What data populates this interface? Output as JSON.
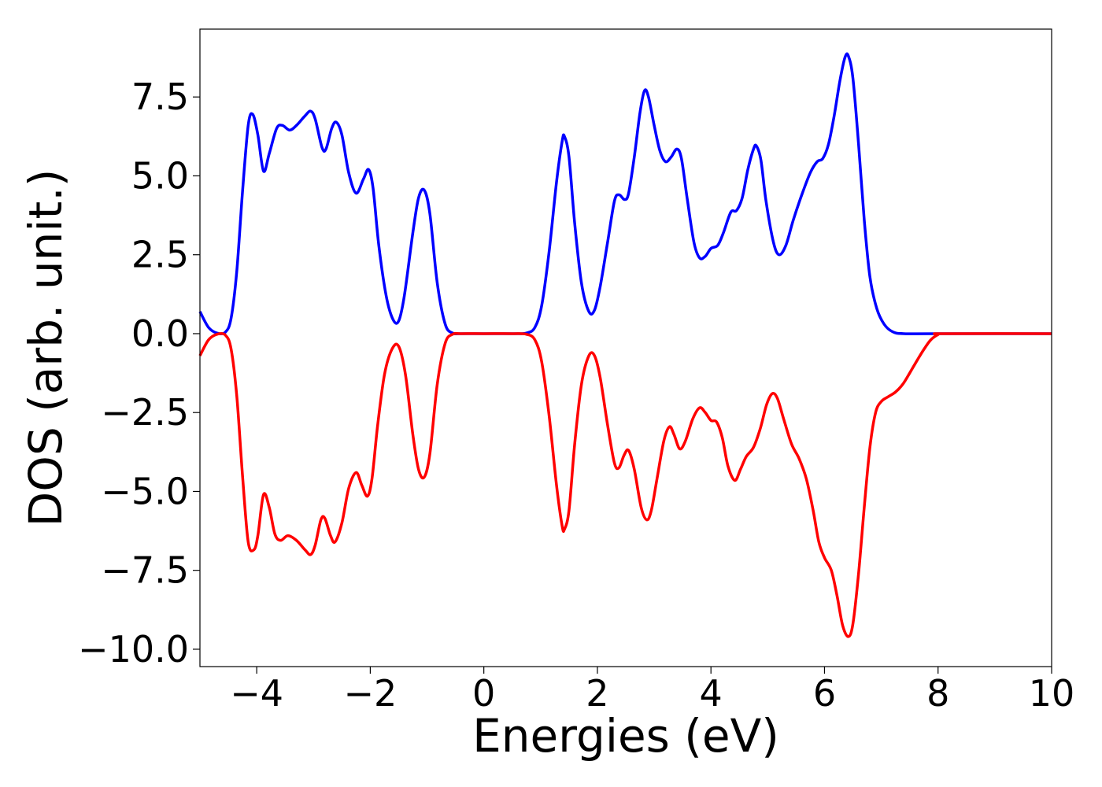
{
  "chart_data": {
    "type": "line",
    "title": "",
    "xlabel": "Energies (eV)",
    "ylabel": "DOS (arb. unit.)",
    "xlim": [
      -5,
      10
    ],
    "ylim": [
      -10.55,
      9.65
    ],
    "grid": false,
    "legend": "none",
    "x_ticks": [
      {
        "value": -4,
        "label": "−4"
      },
      {
        "value": -2,
        "label": "−2"
      },
      {
        "value": 0,
        "label": "0"
      },
      {
        "value": 2,
        "label": "2"
      },
      {
        "value": 4,
        "label": "4"
      },
      {
        "value": 6,
        "label": "6"
      },
      {
        "value": 8,
        "label": "8"
      },
      {
        "value": 10,
        "label": "10"
      }
    ],
    "y_ticks": [
      {
        "value": 7.5,
        "label": "7.5"
      },
      {
        "value": 5.0,
        "label": "5.0"
      },
      {
        "value": 2.5,
        "label": "2.5"
      },
      {
        "value": 0.0,
        "label": "0.0"
      },
      {
        "value": -2.5,
        "label": "−2.5"
      },
      {
        "value": -5.0,
        "label": "−5.0"
      },
      {
        "value": -7.5,
        "label": "−7.5"
      },
      {
        "value": -10.0,
        "label": "−10.0"
      }
    ],
    "series": [
      {
        "color": "#0000ff",
        "points": [
          [
            -5.0,
            0.7
          ],
          [
            -4.85,
            0.2
          ],
          [
            -4.7,
            0.02
          ],
          [
            -4.55,
            0.05
          ],
          [
            -4.45,
            0.5
          ],
          [
            -4.35,
            2.0
          ],
          [
            -4.25,
            4.5
          ],
          [
            -4.15,
            6.6
          ],
          [
            -4.07,
            6.95
          ],
          [
            -3.98,
            6.3
          ],
          [
            -3.88,
            5.15
          ],
          [
            -3.78,
            5.7
          ],
          [
            -3.65,
            6.5
          ],
          [
            -3.55,
            6.6
          ],
          [
            -3.42,
            6.45
          ],
          [
            -3.3,
            6.6
          ],
          [
            -3.15,
            6.9
          ],
          [
            -3.05,
            7.05
          ],
          [
            -2.97,
            6.8
          ],
          [
            -2.85,
            5.9
          ],
          [
            -2.78,
            5.85
          ],
          [
            -2.68,
            6.5
          ],
          [
            -2.6,
            6.7
          ],
          [
            -2.5,
            6.3
          ],
          [
            -2.38,
            5.1
          ],
          [
            -2.25,
            4.45
          ],
          [
            -2.12,
            4.9
          ],
          [
            -2.03,
            5.2
          ],
          [
            -1.95,
            4.6
          ],
          [
            -1.85,
            2.8
          ],
          [
            -1.72,
            1.2
          ],
          [
            -1.6,
            0.45
          ],
          [
            -1.5,
            0.4
          ],
          [
            -1.4,
            1.2
          ],
          [
            -1.25,
            3.2
          ],
          [
            -1.15,
            4.3
          ],
          [
            -1.05,
            4.55
          ],
          [
            -0.95,
            3.8
          ],
          [
            -0.82,
            1.6
          ],
          [
            -0.68,
            0.3
          ],
          [
            -0.55,
            0.02
          ],
          [
            -0.4,
            0.0
          ],
          [
            0.0,
            0.0
          ],
          [
            0.5,
            0.0
          ],
          [
            0.75,
            0.02
          ],
          [
            0.9,
            0.2
          ],
          [
            1.02,
            0.9
          ],
          [
            1.15,
            2.6
          ],
          [
            1.28,
            4.8
          ],
          [
            1.38,
            6.1
          ],
          [
            1.42,
            6.25
          ],
          [
            1.5,
            5.6
          ],
          [
            1.6,
            3.5
          ],
          [
            1.72,
            1.6
          ],
          [
            1.85,
            0.7
          ],
          [
            1.95,
            0.75
          ],
          [
            2.05,
            1.5
          ],
          [
            2.18,
            2.9
          ],
          [
            2.3,
            4.2
          ],
          [
            2.38,
            4.4
          ],
          [
            2.48,
            4.25
          ],
          [
            2.55,
            4.45
          ],
          [
            2.65,
            5.6
          ],
          [
            2.75,
            7.0
          ],
          [
            2.83,
            7.7
          ],
          [
            2.9,
            7.5
          ],
          [
            3.0,
            6.6
          ],
          [
            3.1,
            5.8
          ],
          [
            3.2,
            5.45
          ],
          [
            3.3,
            5.6
          ],
          [
            3.4,
            5.85
          ],
          [
            3.48,
            5.55
          ],
          [
            3.58,
            4.3
          ],
          [
            3.7,
            2.9
          ],
          [
            3.8,
            2.4
          ],
          [
            3.9,
            2.45
          ],
          [
            4.0,
            2.7
          ],
          [
            4.12,
            2.8
          ],
          [
            4.22,
            3.2
          ],
          [
            4.35,
            3.85
          ],
          [
            4.45,
            3.9
          ],
          [
            4.55,
            4.3
          ],
          [
            4.65,
            5.2
          ],
          [
            4.75,
            5.85
          ],
          [
            4.8,
            5.95
          ],
          [
            4.88,
            5.5
          ],
          [
            4.97,
            4.2
          ],
          [
            5.1,
            2.9
          ],
          [
            5.2,
            2.5
          ],
          [
            5.32,
            2.8
          ],
          [
            5.45,
            3.6
          ],
          [
            5.6,
            4.4
          ],
          [
            5.75,
            5.1
          ],
          [
            5.87,
            5.45
          ],
          [
            5.97,
            5.55
          ],
          [
            6.07,
            6.0
          ],
          [
            6.17,
            6.9
          ],
          [
            6.27,
            8.0
          ],
          [
            6.36,
            8.75
          ],
          [
            6.42,
            8.8
          ],
          [
            6.5,
            8.1
          ],
          [
            6.6,
            6.0
          ],
          [
            6.7,
            3.6
          ],
          [
            6.8,
            1.8
          ],
          [
            6.92,
            0.8
          ],
          [
            7.05,
            0.3
          ],
          [
            7.2,
            0.06
          ],
          [
            7.4,
            0.0
          ],
          [
            8.0,
            0.0
          ],
          [
            10.0,
            0.0
          ]
        ]
      },
      {
        "color": "#ff0000",
        "points": [
          [
            -5.0,
            -0.7
          ],
          [
            -4.85,
            -0.2
          ],
          [
            -4.7,
            -0.02
          ],
          [
            -4.55,
            -0.05
          ],
          [
            -4.45,
            -0.5
          ],
          [
            -4.35,
            -2.0
          ],
          [
            -4.25,
            -4.5
          ],
          [
            -4.15,
            -6.6
          ],
          [
            -4.05,
            -6.85
          ],
          [
            -3.98,
            -6.4
          ],
          [
            -3.88,
            -5.1
          ],
          [
            -3.78,
            -5.5
          ],
          [
            -3.68,
            -6.35
          ],
          [
            -3.58,
            -6.55
          ],
          [
            -3.45,
            -6.4
          ],
          [
            -3.3,
            -6.55
          ],
          [
            -3.15,
            -6.85
          ],
          [
            -3.05,
            -7.0
          ],
          [
            -2.97,
            -6.7
          ],
          [
            -2.87,
            -5.9
          ],
          [
            -2.8,
            -5.85
          ],
          [
            -2.7,
            -6.4
          ],
          [
            -2.62,
            -6.6
          ],
          [
            -2.5,
            -6.0
          ],
          [
            -2.38,
            -4.9
          ],
          [
            -2.25,
            -4.4
          ],
          [
            -2.15,
            -4.8
          ],
          [
            -2.05,
            -5.15
          ],
          [
            -1.97,
            -4.6
          ],
          [
            -1.87,
            -2.9
          ],
          [
            -1.75,
            -1.3
          ],
          [
            -1.62,
            -0.5
          ],
          [
            -1.5,
            -0.4
          ],
          [
            -1.38,
            -1.3
          ],
          [
            -1.25,
            -3.2
          ],
          [
            -1.15,
            -4.3
          ],
          [
            -1.05,
            -4.55
          ],
          [
            -0.95,
            -3.8
          ],
          [
            -0.82,
            -1.6
          ],
          [
            -0.68,
            -0.3
          ],
          [
            -0.55,
            -0.02
          ],
          [
            -0.4,
            0.0
          ],
          [
            0.0,
            0.0
          ],
          [
            0.5,
            0.0
          ],
          [
            0.75,
            -0.02
          ],
          [
            0.9,
            -0.2
          ],
          [
            1.02,
            -0.9
          ],
          [
            1.15,
            -2.6
          ],
          [
            1.28,
            -4.8
          ],
          [
            1.38,
            -6.1
          ],
          [
            1.42,
            -6.2
          ],
          [
            1.5,
            -5.6
          ],
          [
            1.6,
            -3.5
          ],
          [
            1.72,
            -1.6
          ],
          [
            1.85,
            -0.7
          ],
          [
            1.95,
            -0.7
          ],
          [
            2.05,
            -1.4
          ],
          [
            2.18,
            -2.9
          ],
          [
            2.3,
            -4.1
          ],
          [
            2.38,
            -4.25
          ],
          [
            2.47,
            -3.85
          ],
          [
            2.55,
            -3.7
          ],
          [
            2.65,
            -4.3
          ],
          [
            2.77,
            -5.5
          ],
          [
            2.87,
            -5.9
          ],
          [
            2.95,
            -5.6
          ],
          [
            3.05,
            -4.6
          ],
          [
            3.17,
            -3.4
          ],
          [
            3.27,
            -2.95
          ],
          [
            3.35,
            -3.2
          ],
          [
            3.45,
            -3.65
          ],
          [
            3.55,
            -3.4
          ],
          [
            3.68,
            -2.7
          ],
          [
            3.8,
            -2.35
          ],
          [
            3.9,
            -2.5
          ],
          [
            4.0,
            -2.75
          ],
          [
            4.1,
            -2.8
          ],
          [
            4.2,
            -3.3
          ],
          [
            4.3,
            -4.2
          ],
          [
            4.42,
            -4.65
          ],
          [
            4.52,
            -4.3
          ],
          [
            4.62,
            -3.9
          ],
          [
            4.75,
            -3.6
          ],
          [
            4.87,
            -3.0
          ],
          [
            4.98,
            -2.25
          ],
          [
            5.08,
            -1.9
          ],
          [
            5.17,
            -2.05
          ],
          [
            5.28,
            -2.7
          ],
          [
            5.42,
            -3.5
          ],
          [
            5.55,
            -3.95
          ],
          [
            5.68,
            -4.6
          ],
          [
            5.8,
            -5.6
          ],
          [
            5.9,
            -6.6
          ],
          [
            6.0,
            -7.1
          ],
          [
            6.12,
            -7.5
          ],
          [
            6.22,
            -8.3
          ],
          [
            6.32,
            -9.25
          ],
          [
            6.42,
            -9.6
          ],
          [
            6.5,
            -9.2
          ],
          [
            6.6,
            -7.6
          ],
          [
            6.7,
            -5.5
          ],
          [
            6.8,
            -3.6
          ],
          [
            6.9,
            -2.5
          ],
          [
            7.0,
            -2.15
          ],
          [
            7.12,
            -2.0
          ],
          [
            7.25,
            -1.85
          ],
          [
            7.38,
            -1.6
          ],
          [
            7.5,
            -1.25
          ],
          [
            7.63,
            -0.85
          ],
          [
            7.75,
            -0.5
          ],
          [
            7.87,
            -0.2
          ],
          [
            8.0,
            -0.03
          ],
          [
            8.1,
            0.0
          ],
          [
            10.0,
            0.0
          ]
        ]
      }
    ]
  }
}
